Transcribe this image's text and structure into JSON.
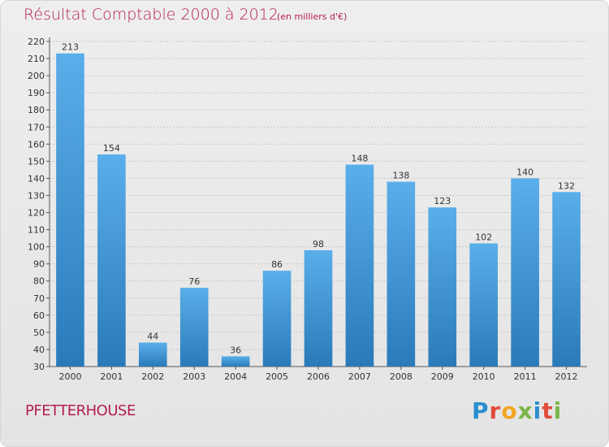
{
  "header": {
    "title": "Résultat Comptable 2000 à 2012",
    "subtitle": "(en milliers d'€)"
  },
  "footer": {
    "commune": "PFETTERHOUSE",
    "logo_text": "Proxiti"
  },
  "colors": {
    "title": "#b31f52",
    "bar_top": "#5aaeea",
    "bar_bottom": "#2a7ab9"
  },
  "chart_data": {
    "type": "bar",
    "title": "Résultat Comptable 2000 à 2012",
    "subtitle": "(en milliers d'€)",
    "categories": [
      "2000",
      "2001",
      "2002",
      "2003",
      "2004",
      "2005",
      "2006",
      "2007",
      "2008",
      "2009",
      "2010",
      "2011",
      "2012"
    ],
    "values": [
      213,
      154,
      44,
      76,
      36,
      86,
      98,
      148,
      138,
      123,
      102,
      140,
      132
    ],
    "ylim": [
      30,
      220
    ],
    "yticks": [
      30,
      40,
      50,
      60,
      70,
      80,
      90,
      100,
      110,
      120,
      130,
      140,
      150,
      160,
      170,
      180,
      190,
      200,
      210,
      220
    ],
    "grid": true,
    "legend": "none"
  }
}
